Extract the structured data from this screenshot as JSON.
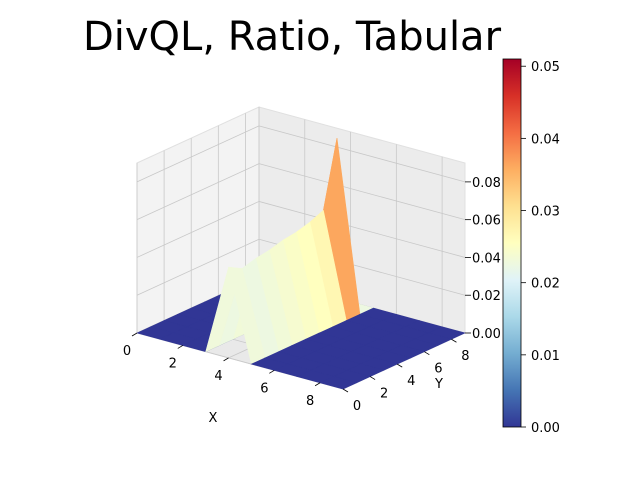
{
  "chart_data": {
    "type": "surface3d",
    "title": "DivQL, Ratio, Tabular",
    "xlabel": "X",
    "ylabel": "Y",
    "zlabel": "",
    "x_ticks": [
      "0",
      "2",
      "4",
      "6",
      "8"
    ],
    "y_ticks": [
      "0",
      "2",
      "4",
      "6",
      "8"
    ],
    "z_ticks": [
      "0.00",
      "0.02",
      "0.04",
      "0.06",
      "0.08"
    ],
    "xlim": [
      0,
      9
    ],
    "ylim": [
      0,
      9
    ],
    "zlim": [
      0,
      0.09
    ],
    "grid": true,
    "colormap": "RdYlBu_r",
    "colorbar": {
      "ticks": [
        "0.00",
        "0.01",
        "0.02",
        "0.03",
        "0.04",
        "0.05"
      ],
      "range": [
        0,
        0.051
      ]
    },
    "x": [
      0,
      1,
      2,
      3,
      4,
      5,
      6,
      7,
      8,
      9
    ],
    "y": [
      0,
      1,
      2,
      3,
      4,
      5,
      6,
      7,
      8,
      9
    ],
    "z": [
      [
        0,
        0,
        0,
        0,
        0,
        0,
        0,
        0,
        0,
        0
      ],
      [
        0,
        0,
        0,
        0,
        0,
        0,
        0,
        0,
        0,
        0
      ],
      [
        0,
        0,
        0,
        0,
        0,
        0,
        0,
        0,
        0,
        0
      ],
      [
        0,
        0,
        0,
        0,
        0,
        0,
        0,
        0,
        0,
        0
      ],
      [
        0.048,
        0.044,
        0.046,
        0.047,
        0.049,
        0.05,
        0.052,
        0.055,
        0.09,
        0
      ],
      [
        0,
        0,
        0,
        0,
        0,
        0,
        0,
        0,
        0,
        0
      ],
      [
        0,
        0,
        0,
        0,
        0,
        0,
        0,
        0,
        0,
        0
      ],
      [
        0,
        0,
        0,
        0,
        0,
        0,
        0,
        0,
        0,
        0
      ],
      [
        0,
        0,
        0,
        0,
        0,
        0,
        0,
        0,
        0,
        0
      ],
      [
        0,
        0,
        0,
        0,
        0,
        0,
        0,
        0,
        0,
        0
      ]
    ]
  }
}
